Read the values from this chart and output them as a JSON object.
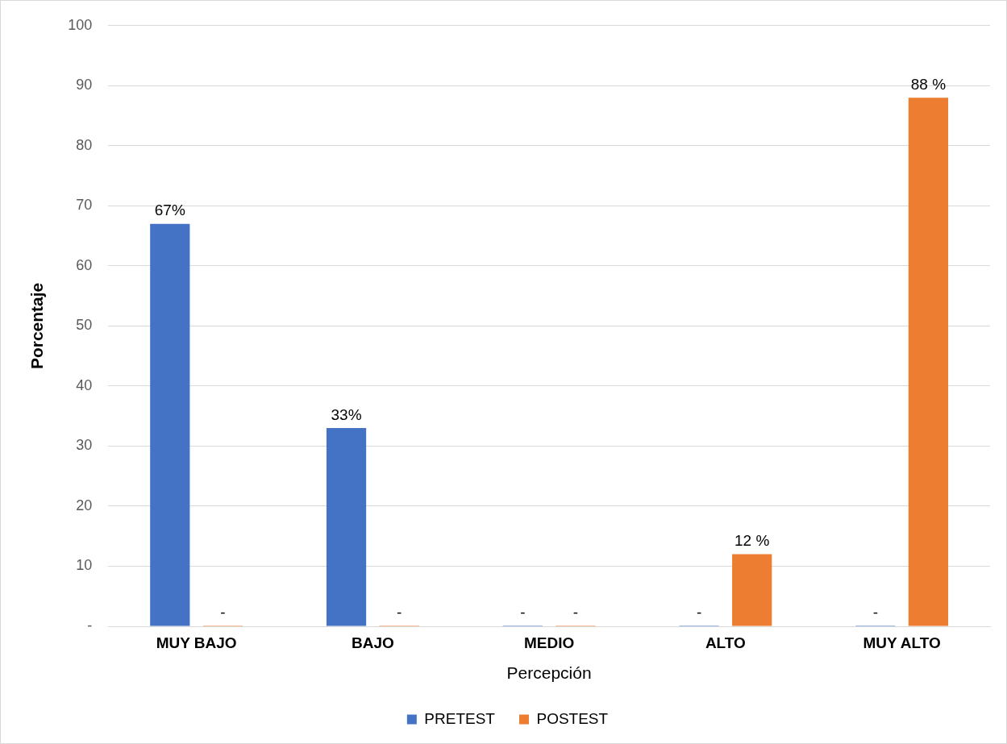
{
  "chart_data": {
    "type": "bar",
    "xlabel": "Percepción",
    "ylabel": "Porcentaje",
    "categories": [
      "MUY BAJO",
      "BAJO",
      "MEDIO",
      "ALTO",
      "MUY ALTO"
    ],
    "series": [
      {
        "name": "PRETEST",
        "color": "#4472c4",
        "values": [
          67,
          33,
          0,
          0,
          0
        ],
        "value_labels": [
          "67%",
          "33%",
          "-",
          "-",
          "-"
        ]
      },
      {
        "name": "POSTEST",
        "color": "#ed7d31",
        "values": [
          0,
          0,
          0,
          12,
          88
        ],
        "value_labels": [
          "-",
          "-",
          "-",
          "12 %",
          "88 %"
        ]
      }
    ],
    "ylim": [
      0,
      100
    ],
    "yticks": [
      {
        "value": 0,
        "label": "-"
      },
      10,
      20,
      30,
      40,
      50,
      60,
      70,
      80,
      90,
      100
    ],
    "grid": "y",
    "legend": "bottom"
  }
}
